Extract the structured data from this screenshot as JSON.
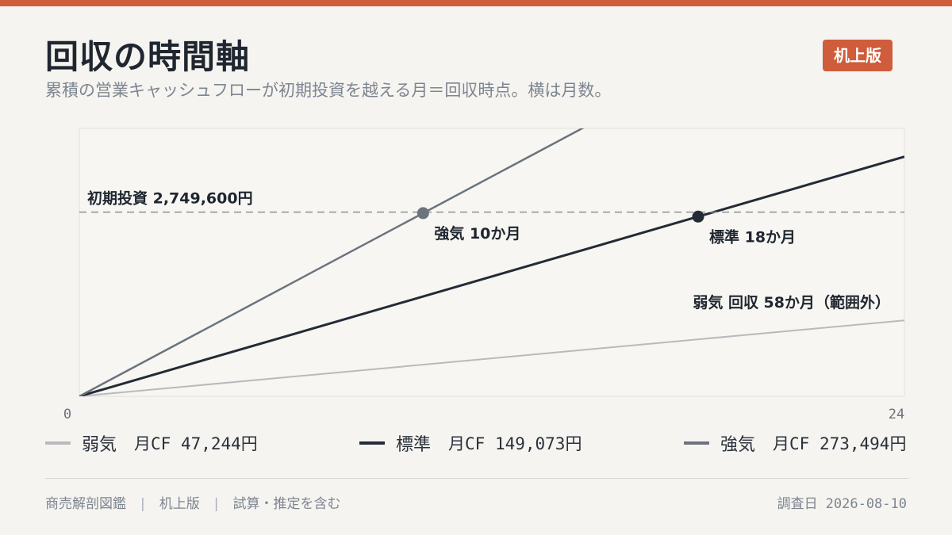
{
  "header": {
    "title": "回収の時間軸",
    "badge": "机上版",
    "subtitle": "累積の営業キャッシュフローが初期投資を越える月＝回収時点。横は月数。"
  },
  "chart_data": {
    "type": "line",
    "x_range": [
      0,
      24
    ],
    "y_range": [
      0,
      4000000
    ],
    "x_ticks": [
      "0",
      "24"
    ],
    "threshold": {
      "value": 2749600,
      "label": "初期投資 2,749,600円"
    },
    "series": [
      {
        "key": "weak",
        "name": "弱気",
        "monthly_cf": 47244,
        "cf_label": "月CF 47,244円",
        "payback_months": 58,
        "color": "#b8babd",
        "width": 2,
        "annotation": "弱気 回収 58か月（範囲外）",
        "marker": false
      },
      {
        "key": "base",
        "name": "標準",
        "monthly_cf": 149073,
        "cf_label": "月CF 149,073円",
        "payback_months": 18,
        "color": "#232b36",
        "width": 3,
        "annotation": "標準 18か月",
        "marker": true
      },
      {
        "key": "strong",
        "name": "強気",
        "monthly_cf": 273494,
        "cf_label": "月CF 273,494円",
        "payback_months": 10,
        "color": "#6b737d",
        "width": 2.5,
        "annotation": "強気 10か月",
        "marker": true
      }
    ]
  },
  "footer": {
    "source": "商売解剖図鑑",
    "edition": "机上版",
    "note": "試算・推定を含む",
    "date_label": "調査日",
    "date": "2026-08-10"
  }
}
